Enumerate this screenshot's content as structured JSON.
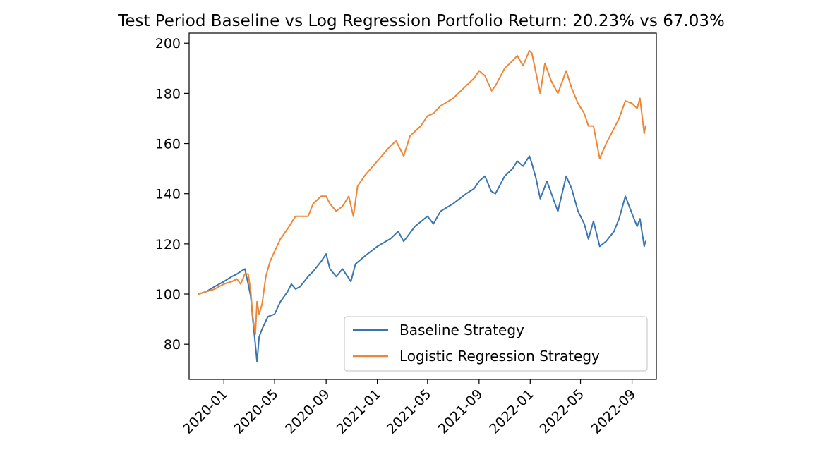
{
  "chart_data": {
    "type": "line",
    "title": "Test Period Baseline vs Log Regression Portfolio Return: 20.23% vs 67.03%",
    "xlabel": "",
    "ylabel": "",
    "x_ticks": [
      "2020-01",
      "2020-05",
      "2020-09",
      "2021-01",
      "2021-05",
      "2021-09",
      "2022-01",
      "2022-05",
      "2022-09"
    ],
    "y_ticks": [
      80,
      100,
      120,
      140,
      160,
      180,
      200
    ],
    "xlim": [
      "2019-10-10",
      "2022-10-29"
    ],
    "ylim": [
      66,
      204
    ],
    "grid": false,
    "legend_position": "lower-right",
    "colors": {
      "baseline": "#3a75b0",
      "logreg": "#ef8636"
    },
    "series": [
      {
        "name": "Baseline Strategy",
        "points": [
          [
            "2019-11-01",
            100
          ],
          [
            "2019-11-20",
            101
          ],
          [
            "2019-12-10",
            103
          ],
          [
            "2020-01-01",
            105
          ],
          [
            "2020-01-20",
            107
          ],
          [
            "2020-02-01",
            108
          ],
          [
            "2020-02-10",
            109
          ],
          [
            "2020-02-20",
            110
          ],
          [
            "2020-02-28",
            104
          ],
          [
            "2020-03-05",
            99
          ],
          [
            "2020-03-10",
            90
          ],
          [
            "2020-03-16",
            80
          ],
          [
            "2020-03-20",
            73
          ],
          [
            "2020-03-25",
            83
          ],
          [
            "2020-04-01",
            86
          ],
          [
            "2020-04-15",
            91
          ],
          [
            "2020-05-01",
            92
          ],
          [
            "2020-05-15",
            97
          ],
          [
            "2020-06-01",
            101
          ],
          [
            "2020-06-10",
            104
          ],
          [
            "2020-06-20",
            102
          ],
          [
            "2020-07-01",
            103
          ],
          [
            "2020-07-20",
            107
          ],
          [
            "2020-08-01",
            109
          ],
          [
            "2020-08-20",
            113
          ],
          [
            "2020-09-01",
            116
          ],
          [
            "2020-09-10",
            110
          ],
          [
            "2020-09-25",
            107
          ],
          [
            "2020-10-10",
            110
          ],
          [
            "2020-10-30",
            105
          ],
          [
            "2020-11-10",
            112
          ],
          [
            "2020-12-01",
            115
          ],
          [
            "2021-01-01",
            119
          ],
          [
            "2021-02-01",
            122
          ],
          [
            "2021-02-20",
            125
          ],
          [
            "2021-03-05",
            121
          ],
          [
            "2021-04-01",
            127
          ],
          [
            "2021-05-01",
            131
          ],
          [
            "2021-05-15",
            128
          ],
          [
            "2021-06-01",
            133
          ],
          [
            "2021-07-01",
            136
          ],
          [
            "2021-08-01",
            140
          ],
          [
            "2021-08-20",
            142
          ],
          [
            "2021-09-01",
            145
          ],
          [
            "2021-09-15",
            147
          ],
          [
            "2021-09-30",
            141
          ],
          [
            "2021-10-10",
            140
          ],
          [
            "2021-11-01",
            147
          ],
          [
            "2021-11-20",
            150
          ],
          [
            "2021-12-01",
            153
          ],
          [
            "2021-12-15",
            151
          ],
          [
            "2021-12-30",
            155
          ],
          [
            "2022-01-05",
            152
          ],
          [
            "2022-01-15",
            146
          ],
          [
            "2022-01-25",
            138
          ],
          [
            "2022-02-10",
            145
          ],
          [
            "2022-02-25",
            138
          ],
          [
            "2022-03-08",
            133
          ],
          [
            "2022-03-28",
            147
          ],
          [
            "2022-04-10",
            142
          ],
          [
            "2022-04-25",
            133
          ],
          [
            "2022-05-10",
            128
          ],
          [
            "2022-05-20",
            122
          ],
          [
            "2022-06-01",
            129
          ],
          [
            "2022-06-16",
            119
          ],
          [
            "2022-07-01",
            121
          ],
          [
            "2022-07-20",
            125
          ],
          [
            "2022-08-01",
            130
          ],
          [
            "2022-08-16",
            139
          ],
          [
            "2022-09-01",
            132
          ],
          [
            "2022-09-13",
            127
          ],
          [
            "2022-09-20",
            130
          ],
          [
            "2022-09-30",
            119
          ],
          [
            "2022-10-03",
            121
          ]
        ]
      },
      {
        "name": "Logistic Regression Strategy",
        "points": [
          [
            "2019-11-01",
            100
          ],
          [
            "2019-11-20",
            101
          ],
          [
            "2019-12-10",
            102
          ],
          [
            "2020-01-01",
            104
          ],
          [
            "2020-01-20",
            105
          ],
          [
            "2020-02-01",
            106
          ],
          [
            "2020-02-10",
            104
          ],
          [
            "2020-02-20",
            108
          ],
          [
            "2020-02-28",
            108
          ],
          [
            "2020-03-05",
            101
          ],
          [
            "2020-03-10",
            91
          ],
          [
            "2020-03-16",
            84
          ],
          [
            "2020-03-20",
            97
          ],
          [
            "2020-03-25",
            92
          ],
          [
            "2020-04-01",
            96
          ],
          [
            "2020-04-10",
            107
          ],
          [
            "2020-04-20",
            113
          ],
          [
            "2020-05-01",
            117
          ],
          [
            "2020-05-15",
            122
          ],
          [
            "2020-06-01",
            126
          ],
          [
            "2020-06-20",
            131
          ],
          [
            "2020-07-01",
            131
          ],
          [
            "2020-07-20",
            131
          ],
          [
            "2020-08-01",
            136
          ],
          [
            "2020-08-20",
            139
          ],
          [
            "2020-09-01",
            139
          ],
          [
            "2020-09-10",
            136
          ],
          [
            "2020-09-25",
            133
          ],
          [
            "2020-10-10",
            135
          ],
          [
            "2020-10-25",
            139
          ],
          [
            "2020-11-05",
            131
          ],
          [
            "2020-11-15",
            143
          ],
          [
            "2020-12-01",
            147
          ],
          [
            "2021-01-01",
            153
          ],
          [
            "2021-02-01",
            159
          ],
          [
            "2021-02-15",
            161
          ],
          [
            "2021-03-05",
            155
          ],
          [
            "2021-03-20",
            163
          ],
          [
            "2021-04-15",
            167
          ],
          [
            "2021-05-01",
            171
          ],
          [
            "2021-05-15",
            172
          ],
          [
            "2021-06-01",
            175
          ],
          [
            "2021-07-01",
            178
          ],
          [
            "2021-08-01",
            183
          ],
          [
            "2021-08-20",
            186
          ],
          [
            "2021-09-01",
            189
          ],
          [
            "2021-09-15",
            187
          ],
          [
            "2021-10-01",
            181
          ],
          [
            "2021-10-10",
            183
          ],
          [
            "2021-11-01",
            190
          ],
          [
            "2021-11-20",
            193
          ],
          [
            "2021-12-01",
            195
          ],
          [
            "2021-12-15",
            191
          ],
          [
            "2021-12-30",
            197
          ],
          [
            "2022-01-05",
            196
          ],
          [
            "2022-01-15",
            188
          ],
          [
            "2022-01-25",
            180
          ],
          [
            "2022-02-05",
            192
          ],
          [
            "2022-02-20",
            185
          ],
          [
            "2022-03-08",
            180
          ],
          [
            "2022-03-28",
            189
          ],
          [
            "2022-04-10",
            182
          ],
          [
            "2022-04-25",
            176
          ],
          [
            "2022-05-10",
            172
          ],
          [
            "2022-05-20",
            167
          ],
          [
            "2022-06-01",
            167
          ],
          [
            "2022-06-16",
            154
          ],
          [
            "2022-07-01",
            160
          ],
          [
            "2022-07-20",
            166
          ],
          [
            "2022-08-01",
            170
          ],
          [
            "2022-08-16",
            177
          ],
          [
            "2022-09-01",
            176
          ],
          [
            "2022-09-13",
            174
          ],
          [
            "2022-09-20",
            178
          ],
          [
            "2022-09-30",
            164
          ],
          [
            "2022-10-03",
            167
          ]
        ]
      }
    ]
  }
}
